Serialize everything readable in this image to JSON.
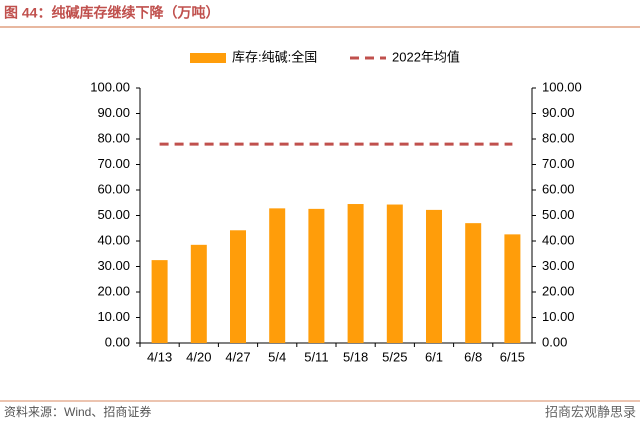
{
  "title": "图 44：纯碱库存继续下降（万吨）",
  "source": "资料来源：Wind、招商证券",
  "watermark": "招商宏观静思录",
  "chart_data": {
    "type": "bar",
    "categories": [
      "4/13",
      "4/20",
      "4/27",
      "5/4",
      "5/11",
      "5/18",
      "5/25",
      "6/1",
      "6/8",
      "6/15"
    ],
    "series": [
      {
        "name": "库存:纯碱:全国",
        "type": "bar",
        "color": "#ff9d0a",
        "values": [
          32.5,
          38.5,
          44.2,
          52.8,
          52.6,
          54.5,
          54.3,
          52.2,
          47.0,
          42.6
        ]
      },
      {
        "name": "2022年均值",
        "type": "dashed-line",
        "color": "#c0504d",
        "values": [
          78,
          78,
          78,
          78,
          78,
          78,
          78,
          78,
          78,
          78
        ]
      }
    ],
    "ylim": [
      0,
      100
    ],
    "yticks": [
      {
        "value": 0,
        "label": "0.00"
      },
      {
        "value": 10,
        "label": "10.00"
      },
      {
        "value": 20,
        "label": "20.00"
      },
      {
        "value": 30,
        "label": "30.00"
      },
      {
        "value": 40,
        "label": "40.00"
      },
      {
        "value": 50,
        "label": "50.00"
      },
      {
        "value": 60,
        "label": "60.00"
      },
      {
        "value": 70,
        "label": "70.00"
      },
      {
        "value": 80,
        "label": "80.00"
      },
      {
        "value": 90,
        "label": "90.00"
      },
      {
        "value": 100,
        "label": "100.00"
      }
    ],
    "y2lim": [
      0,
      100
    ],
    "y2ticks": [
      {
        "value": 0,
        "label": "0.00"
      },
      {
        "value": 10,
        "label": "10.00"
      },
      {
        "value": 20,
        "label": "20.00"
      },
      {
        "value": 30,
        "label": "30.00"
      },
      {
        "value": 40,
        "label": "40.00"
      },
      {
        "value": 50,
        "label": "50.00"
      },
      {
        "value": 60,
        "label": "60.00"
      },
      {
        "value": 70,
        "label": "70.00"
      },
      {
        "value": 80,
        "label": "80.00"
      },
      {
        "value": 90,
        "label": "90.00"
      },
      {
        "value": 100,
        "label": "100.00"
      }
    ],
    "legend": "top"
  }
}
